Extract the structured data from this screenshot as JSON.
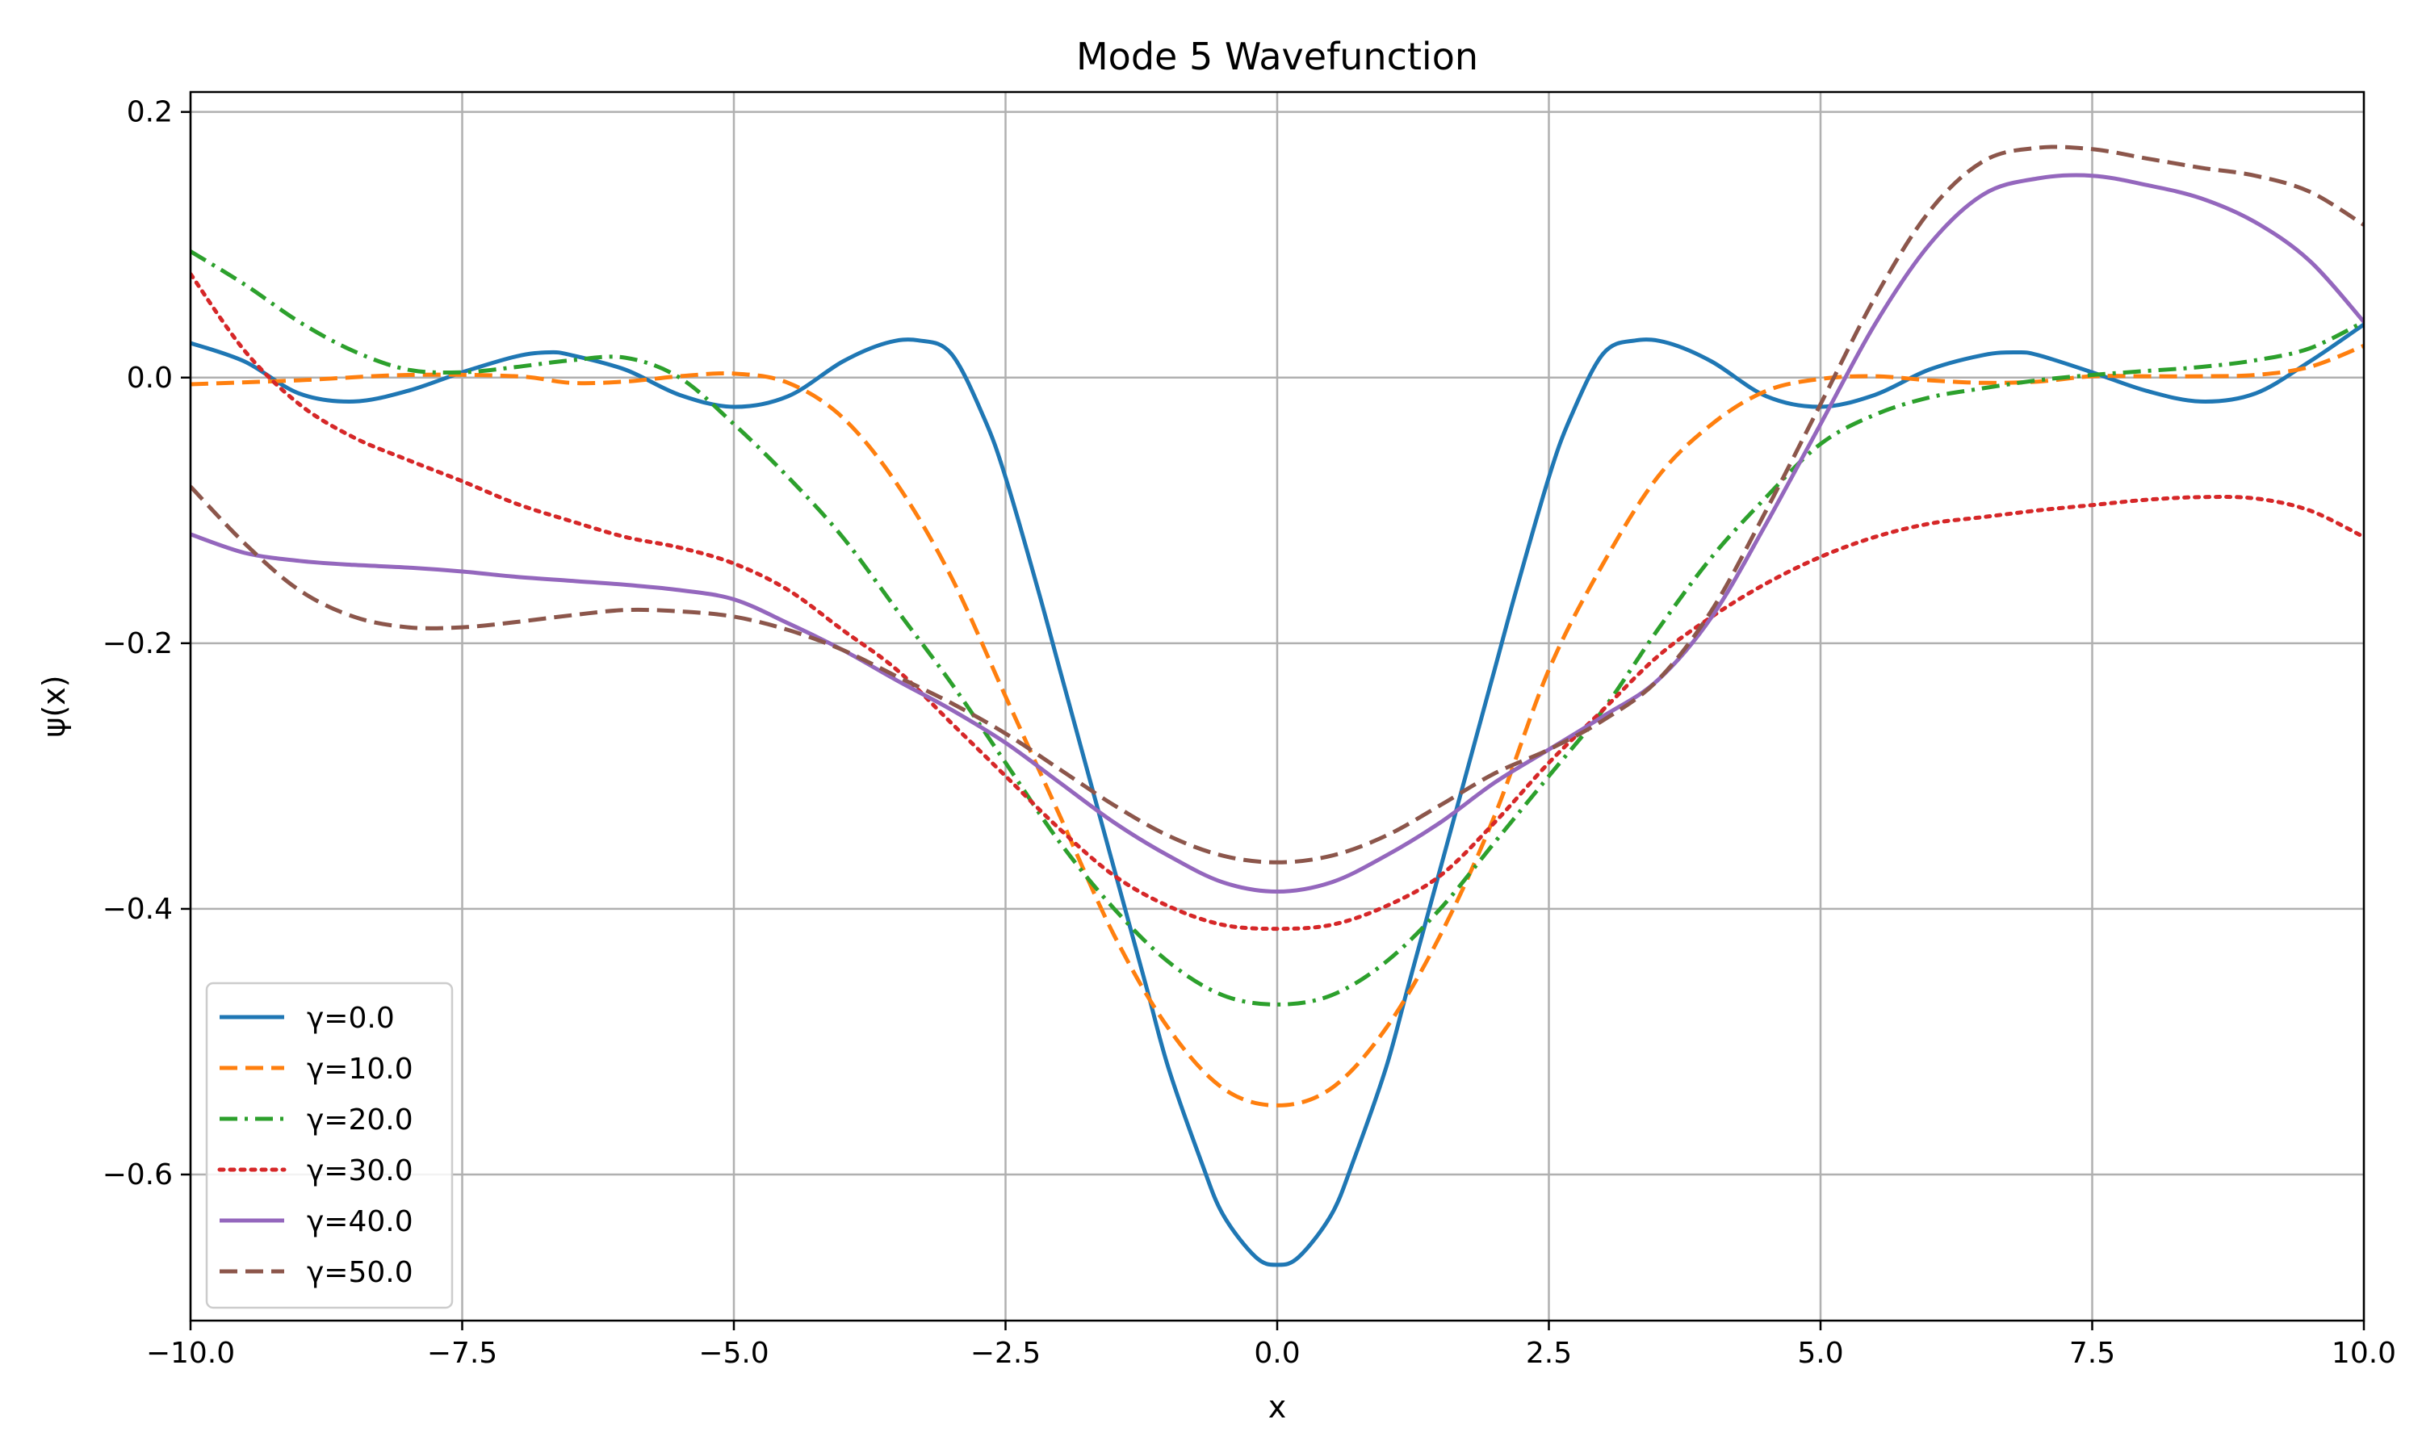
{
  "chart_data": {
    "type": "line",
    "title": "Mode 5 Wavefunction",
    "xlabel": "x",
    "ylabel": "ψ(x)",
    "xlim": [
      -10.0,
      10.0
    ],
    "ylim": [
      -0.71,
      0.215
    ],
    "xticks": [
      -10.0,
      -7.5,
      -5.0,
      -2.5,
      0.0,
      2.5,
      5.0,
      7.5,
      10.0
    ],
    "xtick_labels": [
      "−10.0",
      "−7.5",
      "−5.0",
      "−2.5",
      "0.0",
      "2.5",
      "5.0",
      "7.5",
      "10.0"
    ],
    "yticks": [
      -0.6,
      -0.4,
      -0.2,
      0.0,
      0.2
    ],
    "ytick_labels": [
      "−0.6",
      "−0.4",
      "−0.2",
      "0.0",
      "0.2"
    ],
    "grid": true,
    "legend_position": "lower-left",
    "series": [
      {
        "name": "γ=0.0",
        "color": "#1f77b4",
        "dash": "solid",
        "points": [
          [
            -10,
            0.026
          ],
          [
            -9.5,
            0.012
          ],
          [
            -9,
            -0.012
          ],
          [
            -8.5,
            -0.018
          ],
          [
            -8,
            -0.01
          ],
          [
            -7.5,
            0.004
          ],
          [
            -7,
            0.016
          ],
          [
            -6.7,
            0.019
          ],
          [
            -6.5,
            0.017
          ],
          [
            -6,
            0.006
          ],
          [
            -5.5,
            -0.013
          ],
          [
            -5,
            -0.022
          ],
          [
            -4.5,
            -0.014
          ],
          [
            -4,
            0.012
          ],
          [
            -3.6,
            0.026
          ],
          [
            -3.3,
            0.028
          ],
          [
            -3,
            0.018
          ],
          [
            -2.7,
            -0.03
          ],
          [
            -2.5,
            -0.075
          ],
          [
            -2.2,
            -0.16
          ],
          [
            -2,
            -0.22
          ],
          [
            -1.8,
            -0.28
          ],
          [
            -1.5,
            -0.37
          ],
          [
            -1.2,
            -0.46
          ],
          [
            -1,
            -0.52
          ],
          [
            -0.7,
            -0.59
          ],
          [
            -0.5,
            -0.63
          ],
          [
            -0.2,
            -0.662
          ],
          [
            0,
            -0.668
          ],
          [
            0.2,
            -0.662
          ],
          [
            0.5,
            -0.63
          ],
          [
            0.7,
            -0.59
          ],
          [
            1,
            -0.52
          ],
          [
            1.2,
            -0.46
          ],
          [
            1.5,
            -0.37
          ],
          [
            1.8,
            -0.28
          ],
          [
            2,
            -0.22
          ],
          [
            2.2,
            -0.16
          ],
          [
            2.5,
            -0.075
          ],
          [
            2.7,
            -0.03
          ],
          [
            3,
            0.018
          ],
          [
            3.3,
            0.028
          ],
          [
            3.6,
            0.026
          ],
          [
            4,
            0.012
          ],
          [
            4.5,
            -0.014
          ],
          [
            5,
            -0.022
          ],
          [
            5.5,
            -0.013
          ],
          [
            6,
            0.006
          ],
          [
            6.5,
            0.017
          ],
          [
            6.8,
            0.019
          ],
          [
            7,
            0.017
          ],
          [
            7.5,
            0.004
          ],
          [
            8,
            -0.01
          ],
          [
            8.5,
            -0.018
          ],
          [
            9,
            -0.012
          ],
          [
            9.5,
            0.012
          ],
          [
            10,
            0.04
          ]
        ]
      },
      {
        "name": "γ=10.0",
        "color": "#ff7f0e",
        "dash": "dashed",
        "points": [
          [
            -10,
            -0.005
          ],
          [
            -9,
            -0.002
          ],
          [
            -8,
            0.002
          ],
          [
            -7,
            0.001
          ],
          [
            -6.5,
            -0.004
          ],
          [
            -6,
            -0.003
          ],
          [
            -5.5,
            0.001
          ],
          [
            -5,
            0.003
          ],
          [
            -4.5,
            -0.004
          ],
          [
            -4,
            -0.03
          ],
          [
            -3.5,
            -0.08
          ],
          [
            -3,
            -0.15
          ],
          [
            -2.5,
            -0.24
          ],
          [
            -2,
            -0.33
          ],
          [
            -1.5,
            -0.42
          ],
          [
            -1,
            -0.49
          ],
          [
            -0.5,
            -0.535
          ],
          [
            0,
            -0.548
          ],
          [
            0.5,
            -0.535
          ],
          [
            1,
            -0.49
          ],
          [
            1.5,
            -0.42
          ],
          [
            2,
            -0.33
          ],
          [
            2.5,
            -0.22
          ],
          [
            3,
            -0.14
          ],
          [
            3.5,
            -0.075
          ],
          [
            4,
            -0.035
          ],
          [
            4.5,
            -0.01
          ],
          [
            5,
            -0.001
          ],
          [
            5.5,
            0.001
          ],
          [
            6,
            -0.002
          ],
          [
            6.5,
            -0.004
          ],
          [
            7,
            -0.003
          ],
          [
            7.5,
            0.001
          ],
          [
            8,
            0.001
          ],
          [
            8.5,
            0.001
          ],
          [
            9,
            0.002
          ],
          [
            9.5,
            0.008
          ],
          [
            10,
            0.024
          ]
        ]
      },
      {
        "name": "γ=20.0",
        "color": "#2ca02c",
        "dash": "dashdot",
        "points": [
          [
            -10,
            0.095
          ],
          [
            -9.5,
            0.07
          ],
          [
            -9,
            0.042
          ],
          [
            -8.5,
            0.02
          ],
          [
            -8,
            0.006
          ],
          [
            -7.5,
            0.004
          ],
          [
            -7,
            0.008
          ],
          [
            -6.5,
            0.013
          ],
          [
            -6,
            0.015
          ],
          [
            -5.5,
            0.0
          ],
          [
            -5,
            -0.035
          ],
          [
            -4.5,
            -0.075
          ],
          [
            -4,
            -0.12
          ],
          [
            -3.5,
            -0.175
          ],
          [
            -3,
            -0.23
          ],
          [
            -2.5,
            -0.29
          ],
          [
            -2,
            -0.35
          ],
          [
            -1.5,
            -0.4
          ],
          [
            -1,
            -0.44
          ],
          [
            -0.5,
            -0.465
          ],
          [
            0,
            -0.472
          ],
          [
            0.5,
            -0.465
          ],
          [
            1,
            -0.44
          ],
          [
            1.5,
            -0.4
          ],
          [
            2,
            -0.35
          ],
          [
            2.5,
            -0.3
          ],
          [
            3,
            -0.25
          ],
          [
            3.5,
            -0.19
          ],
          [
            4,
            -0.135
          ],
          [
            4.5,
            -0.09
          ],
          [
            5,
            -0.05
          ],
          [
            5.5,
            -0.028
          ],
          [
            6,
            -0.015
          ],
          [
            6.5,
            -0.008
          ],
          [
            7,
            -0.002
          ],
          [
            7.5,
            0.002
          ],
          [
            8,
            0.005
          ],
          [
            8.5,
            0.008
          ],
          [
            9,
            0.013
          ],
          [
            9.5,
            0.022
          ],
          [
            10,
            0.042
          ]
        ]
      },
      {
        "name": "γ=30.0",
        "color": "#d62728",
        "dash": "dotted",
        "points": [
          [
            -10,
            0.078
          ],
          [
            -9.5,
            0.02
          ],
          [
            -9,
            -0.02
          ],
          [
            -8.5,
            -0.045
          ],
          [
            -8,
            -0.062
          ],
          [
            -7.5,
            -0.078
          ],
          [
            -7,
            -0.095
          ],
          [
            -6.5,
            -0.108
          ],
          [
            -6,
            -0.12
          ],
          [
            -5.5,
            -0.128
          ],
          [
            -5,
            -0.14
          ],
          [
            -4.5,
            -0.16
          ],
          [
            -4,
            -0.19
          ],
          [
            -3.5,
            -0.22
          ],
          [
            -3,
            -0.26
          ],
          [
            -2.5,
            -0.3
          ],
          [
            -2,
            -0.34
          ],
          [
            -1.5,
            -0.375
          ],
          [
            -1,
            -0.398
          ],
          [
            -0.5,
            -0.412
          ],
          [
            0,
            -0.415
          ],
          [
            0.5,
            -0.412
          ],
          [
            1,
            -0.398
          ],
          [
            1.5,
            -0.375
          ],
          [
            2,
            -0.335
          ],
          [
            2.5,
            -0.29
          ],
          [
            3,
            -0.25
          ],
          [
            3.5,
            -0.21
          ],
          [
            4,
            -0.18
          ],
          [
            4.5,
            -0.155
          ],
          [
            5,
            -0.135
          ],
          [
            5.5,
            -0.12
          ],
          [
            6,
            -0.11
          ],
          [
            6.5,
            -0.105
          ],
          [
            7,
            -0.1
          ],
          [
            7.5,
            -0.096
          ],
          [
            8,
            -0.092
          ],
          [
            8.5,
            -0.09
          ],
          [
            9,
            -0.091
          ],
          [
            9.5,
            -0.1
          ],
          [
            10,
            -0.12
          ]
        ]
      },
      {
        "name": "γ=40.0",
        "color": "#9467bd",
        "dash": "solid",
        "points": [
          [
            -10,
            -0.118
          ],
          [
            -9.5,
            -0.132
          ],
          [
            -9,
            -0.138
          ],
          [
            -8.5,
            -0.141
          ],
          [
            -8,
            -0.143
          ],
          [
            -7.5,
            -0.146
          ],
          [
            -7,
            -0.15
          ],
          [
            -6.5,
            -0.153
          ],
          [
            -6,
            -0.156
          ],
          [
            -5.5,
            -0.16
          ],
          [
            -5,
            -0.167
          ],
          [
            -4.5,
            -0.185
          ],
          [
            -4,
            -0.205
          ],
          [
            -3.5,
            -0.228
          ],
          [
            -3,
            -0.25
          ],
          [
            -2.5,
            -0.275
          ],
          [
            -2,
            -0.305
          ],
          [
            -1.5,
            -0.335
          ],
          [
            -1,
            -0.36
          ],
          [
            -0.5,
            -0.38
          ],
          [
            0,
            -0.387
          ],
          [
            0.5,
            -0.38
          ],
          [
            1,
            -0.36
          ],
          [
            1.5,
            -0.335
          ],
          [
            2,
            -0.305
          ],
          [
            2.5,
            -0.28
          ],
          [
            3,
            -0.255
          ],
          [
            3.5,
            -0.228
          ],
          [
            4,
            -0.18
          ],
          [
            4.5,
            -0.11
          ],
          [
            5,
            -0.035
          ],
          [
            5.5,
            0.04
          ],
          [
            6,
            0.1
          ],
          [
            6.5,
            0.138
          ],
          [
            7,
            0.15
          ],
          [
            7.5,
            0.152
          ],
          [
            8,
            0.145
          ],
          [
            8.5,
            0.135
          ],
          [
            9,
            0.117
          ],
          [
            9.5,
            0.088
          ],
          [
            10,
            0.042
          ]
        ]
      },
      {
        "name": "γ=50.0",
        "color": "#8c564b",
        "dash": "dashed",
        "points": [
          [
            -10,
            -0.082
          ],
          [
            -9.5,
            -0.125
          ],
          [
            -9,
            -0.16
          ],
          [
            -8.5,
            -0.18
          ],
          [
            -8,
            -0.188
          ],
          [
            -7.5,
            -0.188
          ],
          [
            -7,
            -0.184
          ],
          [
            -6.5,
            -0.179
          ],
          [
            -6,
            -0.175
          ],
          [
            -5.5,
            -0.176
          ],
          [
            -5,
            -0.18
          ],
          [
            -4.5,
            -0.19
          ],
          [
            -4,
            -0.205
          ],
          [
            -3.5,
            -0.225
          ],
          [
            -3,
            -0.245
          ],
          [
            -2.5,
            -0.268
          ],
          [
            -2,
            -0.295
          ],
          [
            -1.5,
            -0.322
          ],
          [
            -1,
            -0.345
          ],
          [
            -0.5,
            -0.36
          ],
          [
            0,
            -0.365
          ],
          [
            0.5,
            -0.36
          ],
          [
            1,
            -0.345
          ],
          [
            1.5,
            -0.322
          ],
          [
            2,
            -0.298
          ],
          [
            2.5,
            -0.28
          ],
          [
            3,
            -0.258
          ],
          [
            3.5,
            -0.228
          ],
          [
            4,
            -0.175
          ],
          [
            4.5,
            -0.1
          ],
          [
            5,
            -0.02
          ],
          [
            5.5,
            0.06
          ],
          [
            6,
            0.125
          ],
          [
            6.5,
            0.163
          ],
          [
            7,
            0.173
          ],
          [
            7.5,
            0.172
          ],
          [
            8,
            0.165
          ],
          [
            8.5,
            0.158
          ],
          [
            9,
            0.152
          ],
          [
            9.5,
            0.14
          ],
          [
            10,
            0.115
          ]
        ]
      }
    ]
  }
}
